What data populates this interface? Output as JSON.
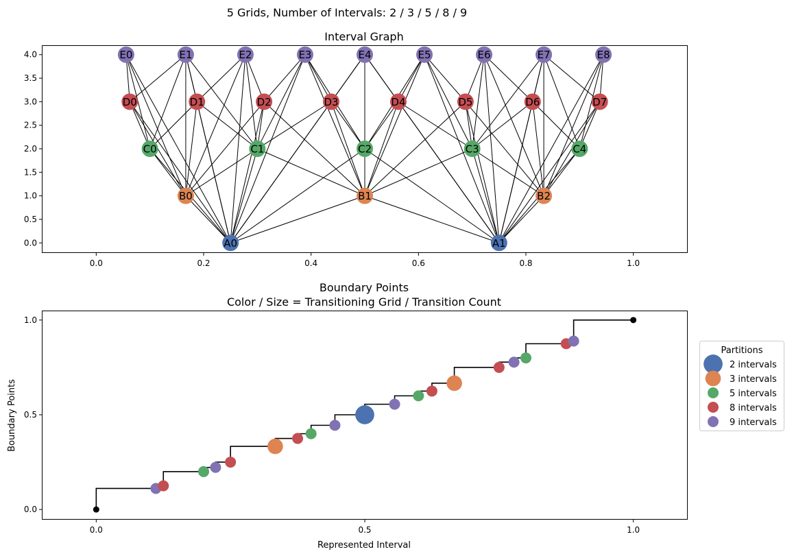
{
  "figure": {
    "suptitle": "5 Grids, Number of Intervals: 2 / 3 / 5 / 8 / 9"
  },
  "colors": {
    "A": "#4c72b0",
    "B": "#dd8452",
    "C": "#55a868",
    "D": "#c44e52",
    "E": "#8172b3",
    "endpoint": "#000000",
    "edge": "#000000"
  },
  "chart_data": [
    {
      "type": "scatter",
      "title": "Interval Graph",
      "xlim": [
        -0.1,
        1.1
      ],
      "ylim": [
        -0.2,
        4.2
      ],
      "xticks": [
        {
          "value": 0.0,
          "label": "0.0"
        },
        {
          "value": 0.2,
          "label": "0.2"
        },
        {
          "value": 0.4,
          "label": "0.4"
        },
        {
          "value": 0.6,
          "label": "0.6"
        },
        {
          "value": 0.8,
          "label": "0.8"
        },
        {
          "value": 1.0,
          "label": "1.0"
        }
      ],
      "yticks": [
        {
          "value": 0.0,
          "label": "0.0"
        },
        {
          "value": 0.5,
          "label": "0.5"
        },
        {
          "value": 1.0,
          "label": "1.0"
        },
        {
          "value": 1.5,
          "label": "1.5"
        },
        {
          "value": 2.0,
          "label": "2.0"
        },
        {
          "value": 2.5,
          "label": "2.5"
        },
        {
          "value": 3.0,
          "label": "3.0"
        },
        {
          "value": 3.5,
          "label": "3.5"
        },
        {
          "value": 4.0,
          "label": "4.0"
        }
      ],
      "nodes": [
        {
          "id": "A0",
          "x": 0.25,
          "y": 0,
          "group": "A"
        },
        {
          "id": "A1",
          "x": 0.75,
          "y": 0,
          "group": "A"
        },
        {
          "id": "B0",
          "x": 0.1667,
          "y": 1,
          "group": "B"
        },
        {
          "id": "B1",
          "x": 0.5,
          "y": 1,
          "group": "B"
        },
        {
          "id": "B2",
          "x": 0.8333,
          "y": 1,
          "group": "B"
        },
        {
          "id": "C0",
          "x": 0.1,
          "y": 2,
          "group": "C"
        },
        {
          "id": "C1",
          "x": 0.3,
          "y": 2,
          "group": "C"
        },
        {
          "id": "C2",
          "x": 0.5,
          "y": 2,
          "group": "C"
        },
        {
          "id": "C3",
          "x": 0.7,
          "y": 2,
          "group": "C"
        },
        {
          "id": "C4",
          "x": 0.9,
          "y": 2,
          "group": "C"
        },
        {
          "id": "D0",
          "x": 0.0625,
          "y": 3,
          "group": "D"
        },
        {
          "id": "D1",
          "x": 0.1875,
          "y": 3,
          "group": "D"
        },
        {
          "id": "D2",
          "x": 0.3125,
          "y": 3,
          "group": "D"
        },
        {
          "id": "D3",
          "x": 0.4375,
          "y": 3,
          "group": "D"
        },
        {
          "id": "D4",
          "x": 0.5625,
          "y": 3,
          "group": "D"
        },
        {
          "id": "D5",
          "x": 0.6875,
          "y": 3,
          "group": "D"
        },
        {
          "id": "D6",
          "x": 0.8125,
          "y": 3,
          "group": "D"
        },
        {
          "id": "D7",
          "x": 0.9375,
          "y": 3,
          "group": "D"
        },
        {
          "id": "E0",
          "x": 0.0556,
          "y": 4,
          "group": "E"
        },
        {
          "id": "E1",
          "x": 0.1667,
          "y": 4,
          "group": "E"
        },
        {
          "id": "E2",
          "x": 0.2778,
          "y": 4,
          "group": "E"
        },
        {
          "id": "E3",
          "x": 0.3889,
          "y": 4,
          "group": "E"
        },
        {
          "id": "E4",
          "x": 0.5,
          "y": 4,
          "group": "E"
        },
        {
          "id": "E5",
          "x": 0.6111,
          "y": 4,
          "group": "E"
        },
        {
          "id": "E6",
          "x": 0.7222,
          "y": 4,
          "group": "E"
        },
        {
          "id": "E7",
          "x": 0.8333,
          "y": 4,
          "group": "E"
        },
        {
          "id": "E8",
          "x": 0.9444,
          "y": 4,
          "group": "E"
        }
      ],
      "edges": "intervals overlap between grids"
    },
    {
      "type": "scatter",
      "title": "Boundary Points",
      "subtitle": "Color / Size = Transitioning Grid / Transition Count",
      "xlabel": "Represented Interval",
      "ylabel": "Boundary Points",
      "xlim": [
        -0.1,
        1.1
      ],
      "ylim": [
        -0.05,
        1.05
      ],
      "xticks": [
        {
          "value": 0.0,
          "label": "0.0"
        },
        {
          "value": 0.5,
          "label": "0.5"
        },
        {
          "value": 1.0,
          "label": "1.0"
        }
      ],
      "yticks": [
        {
          "value": 0.0,
          "label": "0.0"
        },
        {
          "value": 0.5,
          "label": "0.5"
        },
        {
          "value": 1.0,
          "label": "1.0"
        }
      ],
      "step_line": [
        0,
        0.1111,
        0.125,
        0.2,
        0.2222,
        0.25,
        0.3333,
        0.375,
        0.4,
        0.4444,
        0.5,
        0.5556,
        0.6,
        0.625,
        0.6667,
        0.75,
        0.7778,
        0.8,
        0.875,
        0.8889,
        1
      ],
      "endpoints": [
        {
          "x": 0,
          "y": 0
        },
        {
          "x": 1,
          "y": 1
        }
      ],
      "points": [
        {
          "x": 0.1111,
          "y": 0.1111,
          "group": "E",
          "count": 1
        },
        {
          "x": 0.125,
          "y": 0.125,
          "group": "D",
          "count": 1
        },
        {
          "x": 0.2,
          "y": 0.2,
          "group": "C",
          "count": 1
        },
        {
          "x": 0.2222,
          "y": 0.2222,
          "group": "E",
          "count": 1
        },
        {
          "x": 0.25,
          "y": 0.25,
          "group": "D",
          "count": 1
        },
        {
          "x": 0.3333,
          "y": 0.3333,
          "group": "B",
          "count": 2
        },
        {
          "x": 0.375,
          "y": 0.375,
          "group": "D",
          "count": 1
        },
        {
          "x": 0.4,
          "y": 0.4,
          "group": "C",
          "count": 1
        },
        {
          "x": 0.4444,
          "y": 0.4444,
          "group": "E",
          "count": 1
        },
        {
          "x": 0.5,
          "y": 0.5,
          "group": "A",
          "count": 3
        },
        {
          "x": 0.5556,
          "y": 0.5556,
          "group": "E",
          "count": 1
        },
        {
          "x": 0.6,
          "y": 0.6,
          "group": "C",
          "count": 1
        },
        {
          "x": 0.625,
          "y": 0.625,
          "group": "D",
          "count": 1
        },
        {
          "x": 0.6667,
          "y": 0.6667,
          "group": "B",
          "count": 2
        },
        {
          "x": 0.75,
          "y": 0.75,
          "group": "D",
          "count": 1
        },
        {
          "x": 0.7778,
          "y": 0.7778,
          "group": "E",
          "count": 1
        },
        {
          "x": 0.8,
          "y": 0.8,
          "group": "C",
          "count": 1
        },
        {
          "x": 0.875,
          "y": 0.875,
          "group": "D",
          "count": 1
        },
        {
          "x": 0.8889,
          "y": 0.8889,
          "group": "E",
          "count": 1
        }
      ],
      "legend": {
        "title": "Partitions",
        "placement": "right",
        "entries": [
          {
            "label": "2 intervals",
            "group": "A",
            "count": 3
          },
          {
            "label": "3 intervals",
            "group": "B",
            "count": 2
          },
          {
            "label": "5 intervals",
            "group": "C",
            "count": 1
          },
          {
            "label": "8 intervals",
            "group": "D",
            "count": 1
          },
          {
            "label": "9 intervals",
            "group": "E",
            "count": 1
          }
        ]
      }
    }
  ]
}
